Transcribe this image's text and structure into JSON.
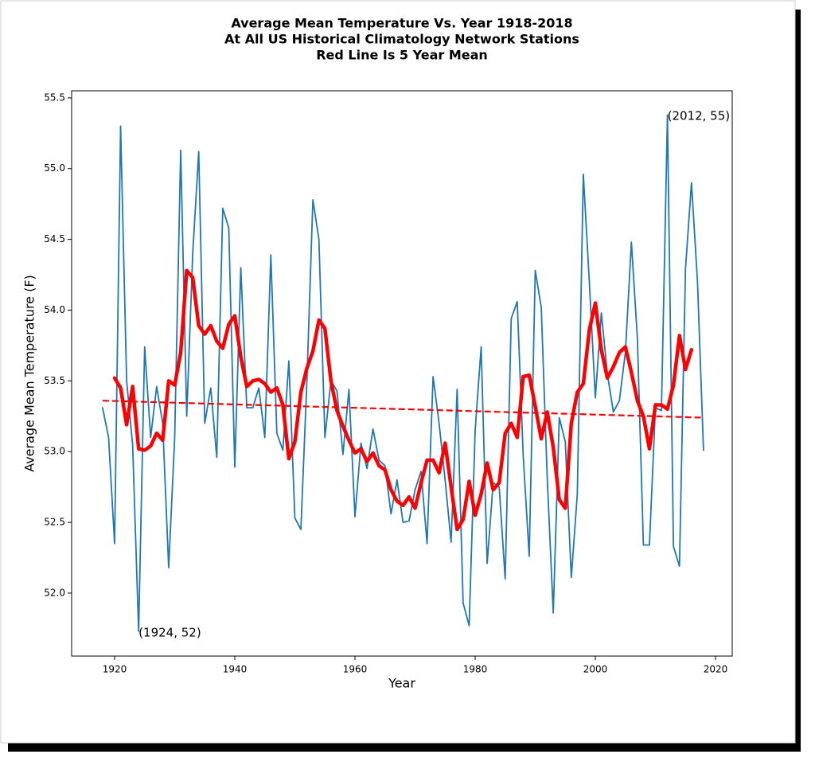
{
  "chart_data": {
    "type": "line",
    "title": [
      "Average Mean Temperature Vs. Year 1918-2018",
      "At All US Historical Climatology Network Stations",
      "Red Line Is 5 Year Mean"
    ],
    "x_label": "Year",
    "y_label": "Average Mean Temperature (F)",
    "xlim": [
      1912.85,
      2022.78
    ],
    "ylim": [
      51.555,
      55.55
    ],
    "xticks": [
      1920,
      1940,
      1960,
      1980,
      2000,
      2020
    ],
    "yticks": [
      {
        "value": 52,
        "label": "52.0"
      },
      52.5,
      {
        "value": 53,
        "label": "53.0"
      },
      53.5,
      {
        "value": 54,
        "label": "54.0"
      },
      54.5,
      {
        "value": 55,
        "label": "55.0"
      },
      55.5
    ],
    "series": [
      {
        "color": "#1f77b4",
        "width": 1.8,
        "dashed": false,
        "x": [
          1918,
          1919,
          1920,
          1921,
          1922,
          1923,
          1924,
          1925,
          1926,
          1927,
          1928,
          1929,
          1930,
          1931,
          1932,
          1933,
          1934,
          1935,
          1936,
          1937,
          1938,
          1939,
          1940,
          1941,
          1942,
          1943,
          1944,
          1945,
          1946,
          1947,
          1948,
          1949,
          1950,
          1951,
          1952,
          1953,
          1954,
          1955,
          1956,
          1957,
          1958,
          1959,
          1960,
          1961,
          1962,
          1963,
          1964,
          1965,
          1966,
          1967,
          1968,
          1969,
          1970,
          1971,
          1972,
          1973,
          1974,
          1975,
          1976,
          1977,
          1978,
          1979,
          1980,
          1981,
          1982,
          1983,
          1984,
          1985,
          1986,
          1987,
          1988,
          1989,
          1990,
          1991,
          1992,
          1993,
          1994,
          1995,
          1996,
          1997,
          1998,
          1999,
          2000,
          2001,
          2002,
          2003,
          2004,
          2005,
          2006,
          2007,
          2008,
          2009,
          2010,
          2011,
          2012,
          2013,
          2014,
          2015,
          2016,
          2017,
          2018
        ],
        "values": [
          53.31,
          53.1,
          52.35,
          55.3,
          53.5,
          53.05,
          51.73,
          53.74,
          53.1,
          53.46,
          53.2,
          52.18,
          53.1,
          55.13,
          53.25,
          54.4,
          55.12,
          53.2,
          53.45,
          52.96,
          54.72,
          54.58,
          52.89,
          54.3,
          53.31,
          53.31,
          53.45,
          53.1,
          54.39,
          53.13,
          53.01,
          53.64,
          52.53,
          52.45,
          53.5,
          54.78,
          54.5,
          53.1,
          53.5,
          53.43,
          52.98,
          53.44,
          52.54,
          53.06,
          52.88,
          53.16,
          52.94,
          52.9,
          52.56,
          52.8,
          52.5,
          52.51,
          52.73,
          52.86,
          52.35,
          53.53,
          53.2,
          52.8,
          52.36,
          53.44,
          51.93,
          51.77,
          53.15,
          53.74,
          52.21,
          52.78,
          52.75,
          52.1,
          53.94,
          54.06,
          52.97,
          52.26,
          54.28,
          54.02,
          52.81,
          51.86,
          53.24,
          53.07,
          52.11,
          52.7,
          54.96,
          54.2,
          53.38,
          53.98,
          53.55,
          53.28,
          53.36,
          53.7,
          54.48,
          53.8,
          52.34,
          52.34,
          53.31,
          53.29,
          55.38,
          52.33,
          52.19,
          54.29,
          54.9,
          54.2,
          53.01
        ]
      },
      {
        "color": "#ff0000",
        "width": 4.5,
        "dashed": false,
        "x": [
          1920,
          1921,
          1922,
          1923,
          1924,
          1925,
          1926,
          1927,
          1928,
          1929,
          1930,
          1931,
          1932,
          1933,
          1934,
          1935,
          1936,
          1937,
          1938,
          1939,
          1940,
          1941,
          1942,
          1943,
          1944,
          1945,
          1946,
          1947,
          1948,
          1949,
          1950,
          1951,
          1952,
          1953,
          1954,
          1955,
          1956,
          1957,
          1958,
          1959,
          1960,
          1961,
          1962,
          1963,
          1964,
          1965,
          1966,
          1967,
          1968,
          1969,
          1970,
          1971,
          1972,
          1973,
          1974,
          1975,
          1976,
          1977,
          1978,
          1979,
          1980,
          1981,
          1982,
          1983,
          1984,
          1985,
          1986,
          1987,
          1988,
          1989,
          1990,
          1991,
          1992,
          1993,
          1994,
          1995,
          1996,
          1997,
          1998,
          1999,
          2000,
          2001,
          2002,
          2003,
          2004,
          2005,
          2006,
          2007,
          2008,
          2009,
          2010,
          2011,
          2012,
          2013,
          2014,
          2015,
          2016
        ],
        "values": [
          53.52,
          53.45,
          53.19,
          53.46,
          53.02,
          53.01,
          53.04,
          53.13,
          53.08,
          53.5,
          53.47,
          53.7,
          54.28,
          54.23,
          53.89,
          53.83,
          53.89,
          53.78,
          53.73,
          53.9,
          53.96,
          53.67,
          53.46,
          53.5,
          53.51,
          53.48,
          53.42,
          53.45,
          53.33,
          52.95,
          53.07,
          53.42,
          53.59,
          53.71,
          53.93,
          53.87,
          53.5,
          53.29,
          53.18,
          53.08,
          52.99,
          53.02,
          52.93,
          52.99,
          52.9,
          52.87,
          52.73,
          52.65,
          52.62,
          52.68,
          52.6,
          52.78,
          52.94,
          52.94,
          52.85,
          53.06,
          52.75,
          52.45,
          52.52,
          52.79,
          52.55,
          52.7,
          52.92,
          52.73,
          52.78,
          53.13,
          53.2,
          53.1,
          53.53,
          53.54,
          53.32,
          53.09,
          53.28,
          53.03,
          52.66,
          52.6,
          53.2,
          53.42,
          53.48,
          53.86,
          54.05,
          53.72,
          53.52,
          53.6,
          53.7,
          53.74,
          53.56,
          53.36,
          53.25,
          53.02,
          53.33,
          53.33,
          53.3,
          53.47,
          53.82,
          53.58,
          53.72
        ]
      },
      {
        "color": "#ff0000",
        "width": 2.2,
        "dashed": true,
        "x": [
          1918,
          2018
        ],
        "values": [
          53.36,
          53.24
        ]
      }
    ],
    "annotations": [
      {
        "text": "(2012, 55)",
        "x": 2012,
        "y": 55.38
      },
      {
        "text": "(1924, 52)",
        "x": 1924,
        "y": 51.73
      }
    ]
  }
}
